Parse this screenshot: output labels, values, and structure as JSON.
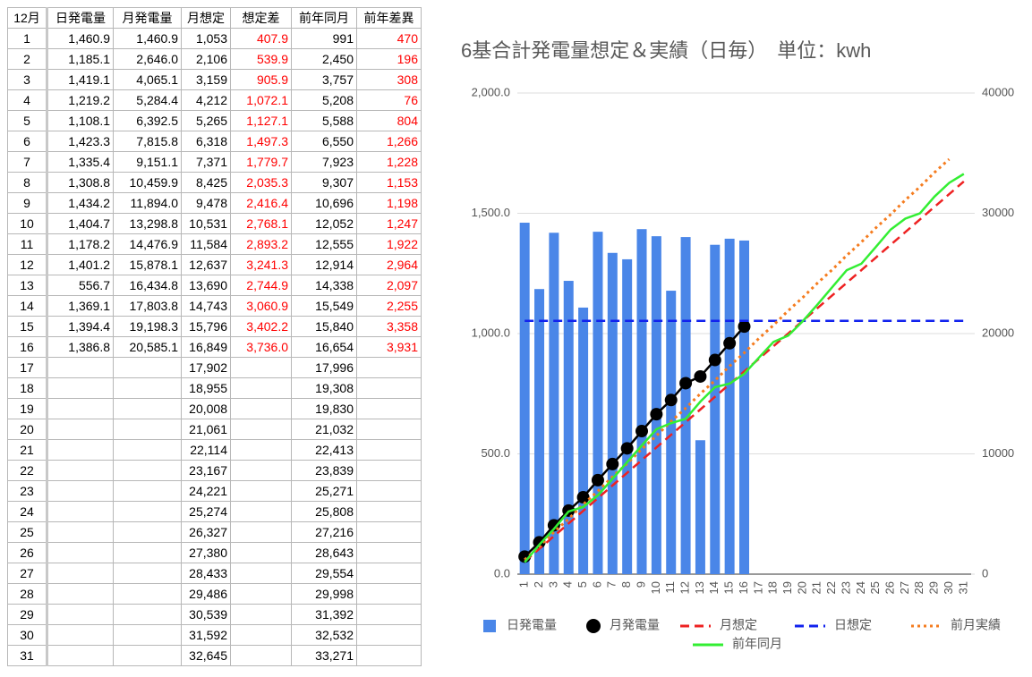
{
  "table": {
    "header": [
      "12月",
      "日発電量",
      "月発電量",
      "月想定",
      "想定差",
      "前年同月",
      "前年差異"
    ],
    "highlight_columns": [
      4,
      6
    ],
    "highlight_color": "#ff0000",
    "rows": [
      [
        "1",
        "1,460.9",
        "1,460.9",
        "1,053",
        "407.9",
        "991",
        "470"
      ],
      [
        "2",
        "1,185.1",
        "2,646.0",
        "2,106",
        "539.9",
        "2,450",
        "196"
      ],
      [
        "3",
        "1,419.1",
        "4,065.1",
        "3,159",
        "905.9",
        "3,757",
        "308"
      ],
      [
        "4",
        "1,219.2",
        "5,284.4",
        "4,212",
        "1,072.1",
        "5,208",
        "76"
      ],
      [
        "5",
        "1,108.1",
        "6,392.5",
        "5,265",
        "1,127.1",
        "5,588",
        "804"
      ],
      [
        "6",
        "1,423.3",
        "7,815.8",
        "6,318",
        "1,497.3",
        "6,550",
        "1,266"
      ],
      [
        "7",
        "1,335.4",
        "9,151.1",
        "7,371",
        "1,779.7",
        "7,923",
        "1,228"
      ],
      [
        "8",
        "1,308.8",
        "10,459.9",
        "8,425",
        "2,035.3",
        "9,307",
        "1,153"
      ],
      [
        "9",
        "1,434.2",
        "11,894.0",
        "9,478",
        "2,416.4",
        "10,696",
        "1,198"
      ],
      [
        "10",
        "1,404.7",
        "13,298.8",
        "10,531",
        "2,768.1",
        "12,052",
        "1,247"
      ],
      [
        "11",
        "1,178.2",
        "14,476.9",
        "11,584",
        "2,893.2",
        "12,555",
        "1,922"
      ],
      [
        "12",
        "1,401.2",
        "15,878.1",
        "12,637",
        "3,241.3",
        "12,914",
        "2,964"
      ],
      [
        "13",
        "556.7",
        "16,434.8",
        "13,690",
        "2,744.9",
        "14,338",
        "2,097"
      ],
      [
        "14",
        "1,369.1",
        "17,803.8",
        "14,743",
        "3,060.9",
        "15,549",
        "2,255"
      ],
      [
        "15",
        "1,394.4",
        "19,198.3",
        "15,796",
        "3,402.2",
        "15,840",
        "3,358"
      ],
      [
        "16",
        "1,386.8",
        "20,585.1",
        "16,849",
        "3,736.0",
        "16,654",
        "3,931"
      ],
      [
        "17",
        null,
        null,
        "17,902",
        null,
        "17,996",
        null
      ],
      [
        "18",
        null,
        null,
        "18,955",
        null,
        "19,308",
        null
      ],
      [
        "19",
        null,
        null,
        "20,008",
        null,
        "19,830",
        null
      ],
      [
        "20",
        null,
        null,
        "21,061",
        null,
        "21,032",
        null
      ],
      [
        "21",
        null,
        null,
        "22,114",
        null,
        "22,413",
        null
      ],
      [
        "22",
        null,
        null,
        "23,167",
        null,
        "23,839",
        null
      ],
      [
        "23",
        null,
        null,
        "24,221",
        null,
        "25,271",
        null
      ],
      [
        "24",
        null,
        null,
        "25,274",
        null,
        "25,808",
        null
      ],
      [
        "25",
        null,
        null,
        "26,327",
        null,
        "27,216",
        null
      ],
      [
        "26",
        null,
        null,
        "27,380",
        null,
        "28,643",
        null
      ],
      [
        "27",
        null,
        null,
        "28,433",
        null,
        "29,554",
        null
      ],
      [
        "28",
        null,
        null,
        "29,486",
        null,
        "29,998",
        null
      ],
      [
        "29",
        null,
        null,
        "30,539",
        null,
        "31,392",
        null
      ],
      [
        "30",
        null,
        null,
        "31,592",
        null,
        "32,532",
        null
      ],
      [
        "31",
        null,
        null,
        "32,645",
        null,
        "33,271",
        null
      ]
    ]
  },
  "chart_data": {
    "type": "combo",
    "title": "6基合計発電量想定＆実績（日毎）　単位：kwh",
    "categories": [
      "1",
      "2",
      "3",
      "4",
      "5",
      "6",
      "7",
      "8",
      "9",
      "10",
      "11",
      "12",
      "13",
      "14",
      "15",
      "16",
      "17",
      "18",
      "19",
      "20",
      "21",
      "22",
      "23",
      "24",
      "25",
      "26",
      "27",
      "28",
      "29",
      "30",
      "31"
    ],
    "ylim": [
      0,
      2000
    ],
    "yticks": [
      {
        "value": 0,
        "label": "0.0"
      },
      {
        "value": 500,
        "label": "500.0"
      },
      {
        "value": 1000,
        "label": "1,000.0"
      },
      {
        "value": 1500,
        "label": "1,500.0"
      },
      {
        "value": 2000,
        "label": "2,000.0"
      }
    ],
    "y2lim": [
      0,
      40000
    ],
    "y2ticks": [
      0,
      10000,
      20000,
      30000,
      40000
    ],
    "grid": true,
    "legend": "bottom",
    "series": [
      {
        "name": "日発電量",
        "type": "bar",
        "color": "#4a86e8",
        "axis": "y",
        "values": [
          1460.9,
          1185.1,
          1419.1,
          1219.2,
          1108.1,
          1423.3,
          1335.4,
          1308.8,
          1434.2,
          1404.7,
          1178.2,
          1401.2,
          556.7,
          1369.1,
          1394.4,
          1386.8,
          null,
          null,
          null,
          null,
          null,
          null,
          null,
          null,
          null,
          null,
          null,
          null,
          null,
          null,
          null
        ]
      },
      {
        "name": "月発電量",
        "type": "line",
        "color": "#000000",
        "axis": "y2",
        "marker": true,
        "values": [
          1460.9,
          2646.0,
          4065.1,
          5284.4,
          6392.5,
          7815.8,
          9151.1,
          10459.9,
          11894.0,
          13298.8,
          14476.9,
          15878.1,
          16434.8,
          17803.8,
          19198.3,
          20585.1,
          null,
          null,
          null,
          null,
          null,
          null,
          null,
          null,
          null,
          null,
          null,
          null,
          null,
          null,
          null
        ]
      },
      {
        "name": "月想定",
        "type": "line",
        "color": "#ee2222",
        "axis": "y2",
        "dash": "dashed",
        "values": [
          1053,
          2106,
          3159,
          4212,
          5265,
          6318,
          7371,
          8425,
          9478,
          10531,
          11584,
          12637,
          13690,
          14743,
          15796,
          16849,
          17902,
          18955,
          20008,
          21061,
          22114,
          23167,
          24221,
          25274,
          26327,
          27380,
          28433,
          29486,
          30539,
          31592,
          32645
        ]
      },
      {
        "name": "日想定",
        "type": "line",
        "color": "#1122ee",
        "axis": "y",
        "dash": "dashed",
        "values": [
          1053,
          1053,
          1053,
          1053,
          1053,
          1053,
          1053,
          1053,
          1053,
          1053,
          1053,
          1053,
          1053,
          1053,
          1053,
          1053,
          1053,
          1053,
          1053,
          1053,
          1053,
          1053,
          1053,
          1053,
          1053,
          1053,
          1053,
          1053,
          1053,
          1053,
          1053
        ]
      },
      {
        "name": "前月実績",
        "type": "line",
        "color": "#f57c1f",
        "axis": "y2",
        "dash": "dotted",
        "values": [
          1200,
          2300,
          3500,
          4600,
          5800,
          6900,
          8100,
          9200,
          10400,
          11500,
          12700,
          13800,
          15000,
          16100,
          17300,
          18400,
          19600,
          20700,
          21900,
          23000,
          24200,
          25300,
          26500,
          27600,
          28800,
          29900,
          31100,
          32200,
          33400,
          34500,
          null
        ]
      },
      {
        "name": "前年同月",
        "type": "line",
        "color": "#33ee33",
        "axis": "y2",
        "values": [
          991,
          2450,
          3757,
          5208,
          5588,
          6550,
          7923,
          9307,
          10696,
          12052,
          12555,
          12914,
          14338,
          15549,
          15840,
          16654,
          17996,
          19308,
          19830,
          21032,
          22413,
          23839,
          25271,
          25808,
          27216,
          28643,
          29554,
          29998,
          31392,
          32532,
          33271
        ]
      }
    ]
  }
}
